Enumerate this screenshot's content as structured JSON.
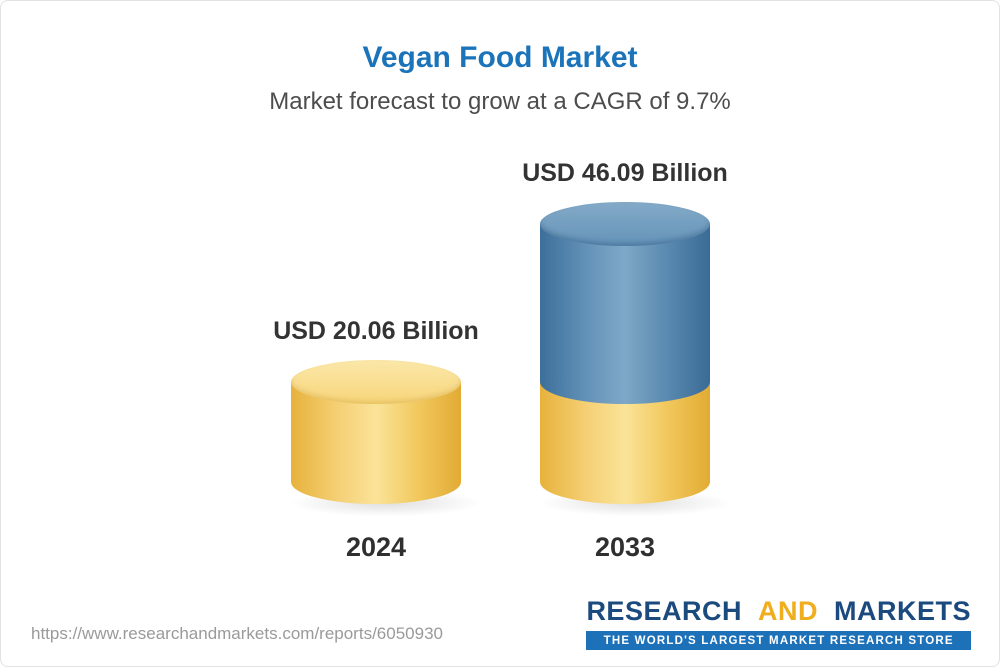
{
  "page": {
    "title": "Vegan Food Market",
    "subtitle": "Market forecast to grow at a CAGR of 9.7%",
    "source_url": "https://www.researchandmarkets.com/reports/6050930"
  },
  "chart_data": {
    "type": "bar",
    "title": "Vegan Food Market",
    "subtitle": "Market forecast to grow at a CAGR of 9.7%",
    "cagr_percent": 9.7,
    "unit": "USD Billion",
    "categories": [
      "2024",
      "2033"
    ],
    "values": [
      20.06,
      46.09
    ],
    "value_labels": [
      "USD 20.06 Billion",
      "USD 46.09 Billion"
    ],
    "ylim": [
      0,
      46.09
    ],
    "legend": "none",
    "grid": false,
    "bars": [
      {
        "category": "2024",
        "label": "USD 20.06 Billion",
        "segments": [
          {
            "name": "base-2024",
            "value": 20.06,
            "color": "#f3cc63"
          }
        ]
      },
      {
        "category": "2033",
        "label": "USD 46.09 Billion",
        "segments": [
          {
            "name": "base-2024",
            "value": 20.06,
            "color": "#f3cc63"
          },
          {
            "name": "growth-2024-2033",
            "value": 26.03,
            "color": "#4d82ad"
          }
        ]
      }
    ]
  },
  "colors": {
    "title_blue": "#1b74ba",
    "subtitle_gray": "#4d4d4d",
    "bar_yellow": "#f3cc63",
    "bar_blue": "#4d82ad",
    "logo_navy": "#1b4a7e",
    "logo_yellow": "#f0ad1d",
    "tagline_bg": "#1d71b8"
  },
  "logo": {
    "word1": "RESEARCH",
    "word2": "AND",
    "word3": "MARKETS",
    "tagline": "THE WORLD'S LARGEST MARKET RESEARCH STORE"
  }
}
